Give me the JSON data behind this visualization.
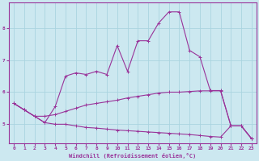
{
  "xlabel": "Windchill (Refroidissement éolien,°C)",
  "xlim": [
    -0.5,
    23.5
  ],
  "ylim": [
    4.4,
    8.8
  ],
  "xticks": [
    0,
    1,
    2,
    3,
    4,
    5,
    6,
    7,
    8,
    9,
    10,
    11,
    12,
    13,
    14,
    15,
    16,
    17,
    18,
    19,
    20,
    21,
    22,
    23
  ],
  "yticks": [
    5,
    6,
    7,
    8
  ],
  "background_color": "#cce8f0",
  "grid_color": "#aad4e0",
  "line_color": "#993399",
  "curve1_x": [
    0,
    1,
    2,
    3,
    4,
    5,
    6,
    7,
    8,
    9,
    10,
    11,
    12,
    13,
    14,
    15,
    16,
    17,
    18,
    19,
    20,
    21,
    22,
    23
  ],
  "curve1_y": [
    5.65,
    5.45,
    5.25,
    5.05,
    5.55,
    6.5,
    6.6,
    6.55,
    6.65,
    6.55,
    7.45,
    6.65,
    7.6,
    7.6,
    8.15,
    8.5,
    8.5,
    7.3,
    7.1,
    6.05,
    6.05,
    4.95,
    4.95,
    4.55
  ],
  "curve2_x": [
    0,
    1,
    2,
    3,
    4,
    5,
    6,
    7,
    8,
    9,
    10,
    11,
    12,
    13,
    14,
    15,
    16,
    17,
    18,
    19,
    20,
    21,
    22,
    23
  ],
  "curve2_y": [
    5.65,
    5.45,
    5.25,
    5.25,
    5.3,
    5.4,
    5.5,
    5.6,
    5.65,
    5.7,
    5.75,
    5.82,
    5.87,
    5.92,
    5.97,
    6.0,
    6.0,
    6.02,
    6.04,
    6.04,
    6.04,
    4.95,
    4.95,
    4.55
  ],
  "curve3_x": [
    0,
    1,
    2,
    3,
    4,
    5,
    6,
    7,
    8,
    9,
    10,
    11,
    12,
    13,
    14,
    15,
    16,
    17,
    18,
    19,
    20,
    21,
    22,
    23
  ],
  "curve3_y": [
    5.65,
    5.45,
    5.25,
    5.05,
    5.0,
    5.0,
    4.95,
    4.9,
    4.88,
    4.85,
    4.82,
    4.8,
    4.78,
    4.76,
    4.74,
    4.72,
    4.7,
    4.68,
    4.65,
    4.62,
    4.6,
    4.95,
    4.95,
    4.55
  ]
}
